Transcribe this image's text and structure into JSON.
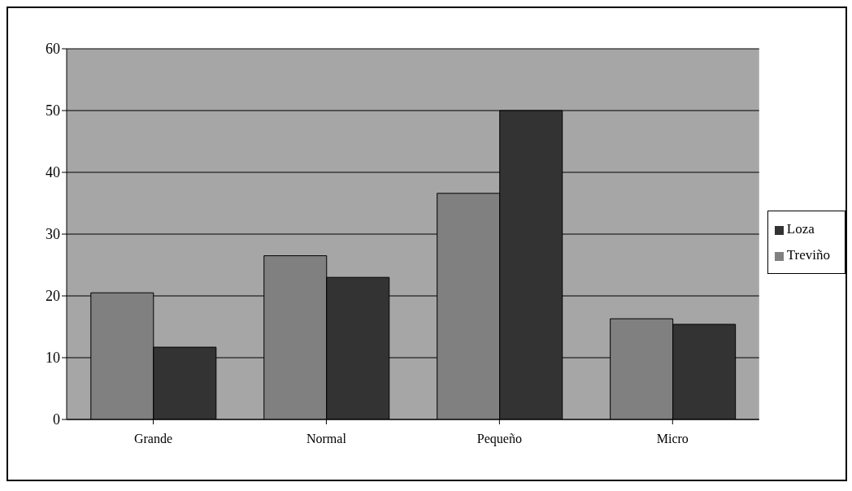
{
  "chart_data": {
    "type": "bar",
    "categories": [
      "Grande",
      "Normal",
      "Pequeño",
      "Micro"
    ],
    "series": [
      {
        "name": "Treviño",
        "color": "#808080",
        "values": [
          20.5,
          26.5,
          36.6,
          16.3
        ]
      },
      {
        "name": "Loza",
        "color": "#333333",
        "values": [
          11.7,
          23.0,
          50,
          15.4
        ]
      }
    ],
    "ylim": [
      0,
      60
    ],
    "yticks": [
      0,
      10,
      20,
      30,
      40,
      50,
      60
    ],
    "grid": "y",
    "legend": "right"
  }
}
